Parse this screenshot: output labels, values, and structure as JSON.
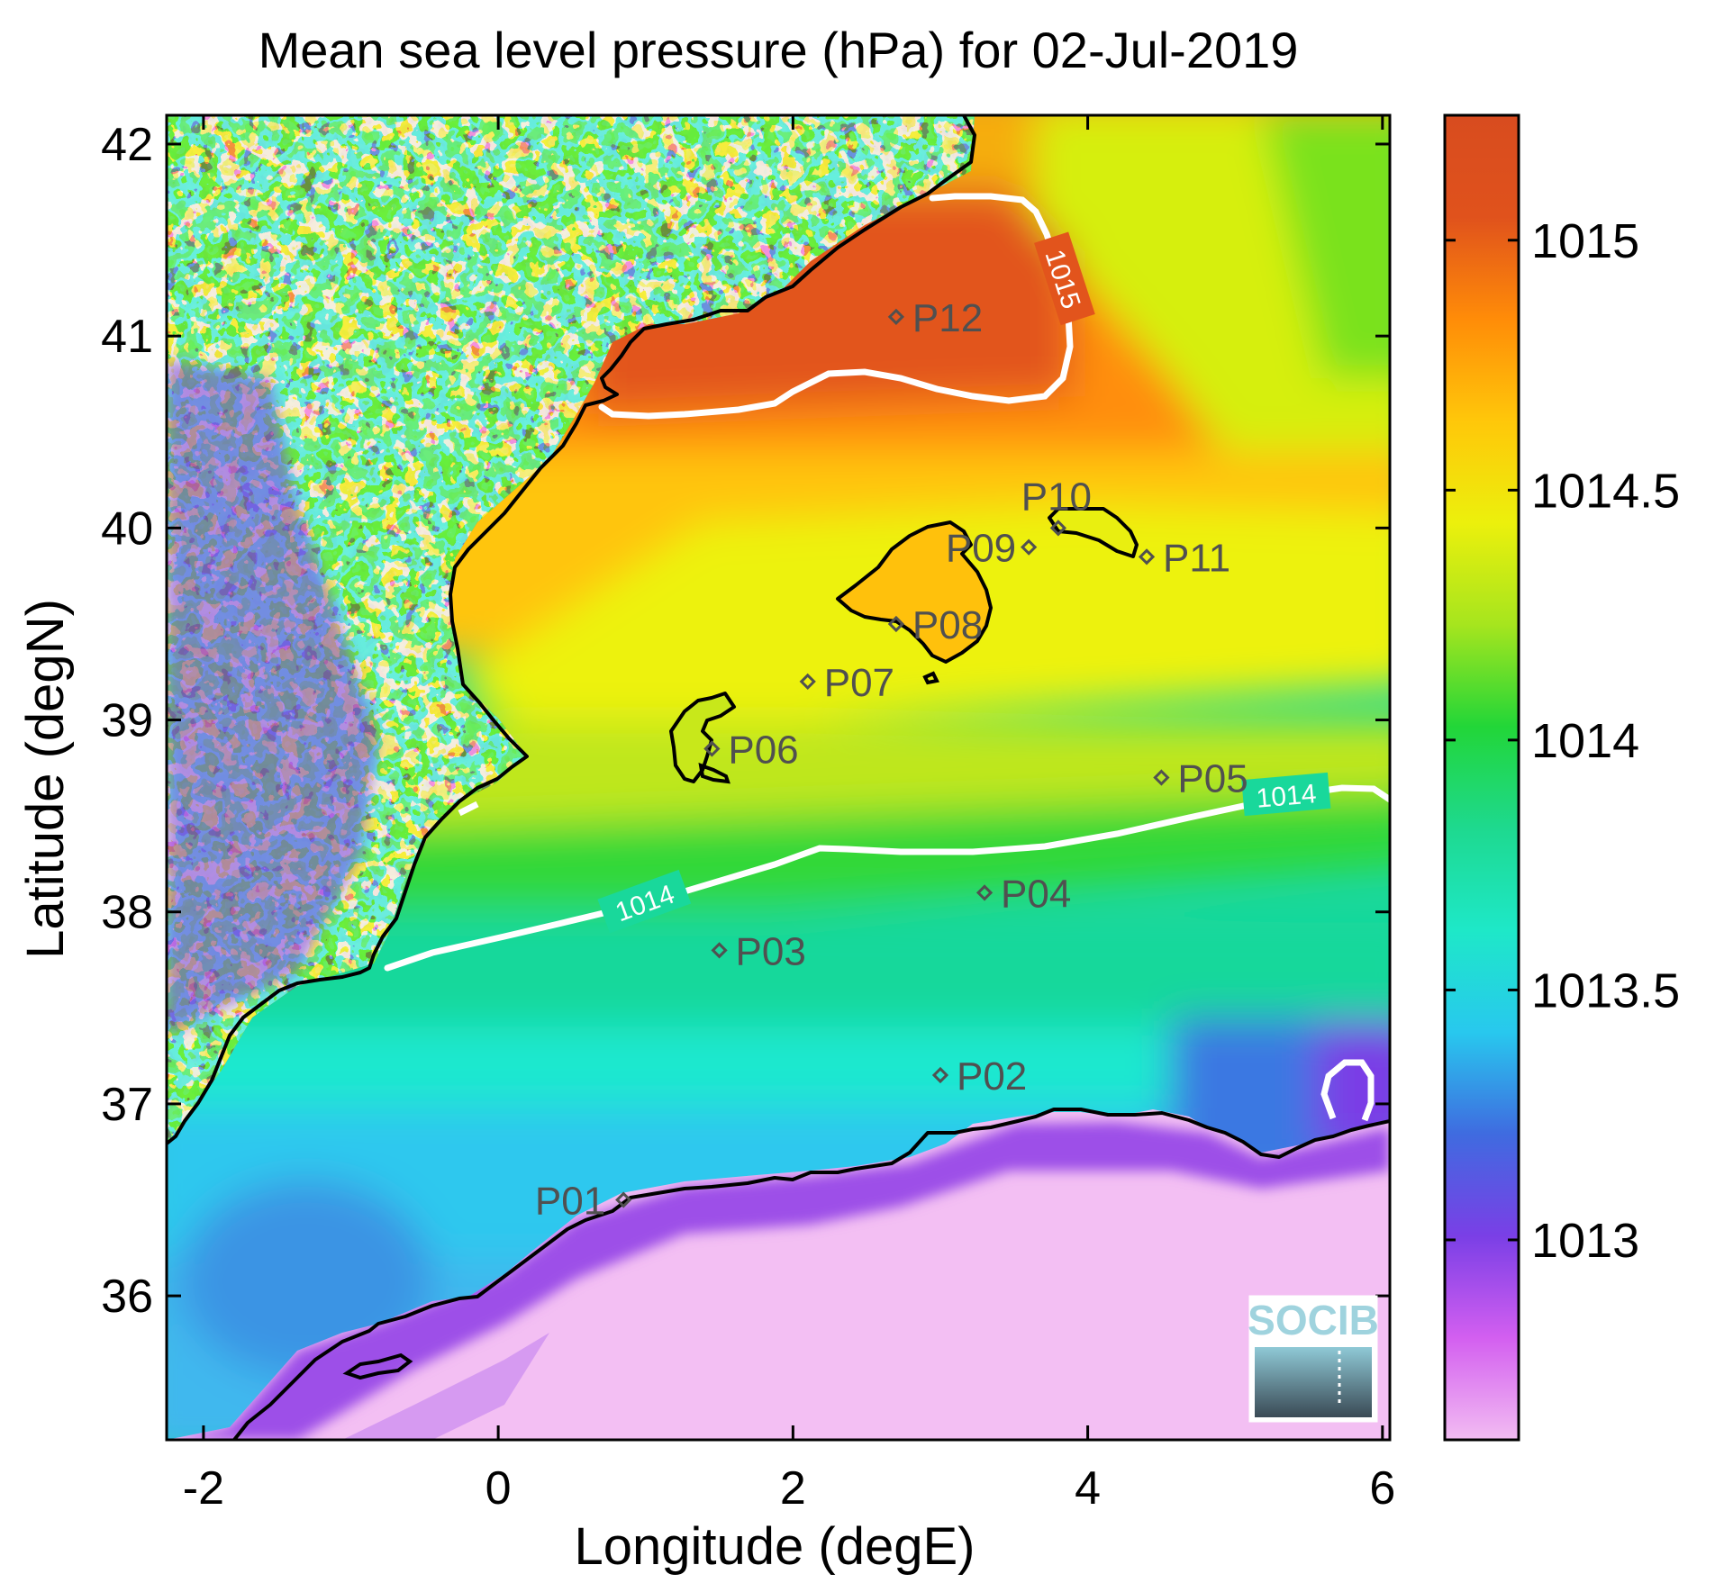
{
  "title": "Mean sea level pressure (hPa) for 02-Jul-2019",
  "x_axis": {
    "label": "Longitude (degE)",
    "ticks": [
      "-2",
      "0",
      "2",
      "4",
      "6"
    ]
  },
  "y_axis": {
    "label": "Latitude (degN)",
    "ticks": [
      "36",
      "37",
      "38",
      "39",
      "40",
      "41",
      "42"
    ]
  },
  "colorbar": {
    "ticks": [
      "1013",
      "1013.5",
      "1014",
      "1014.5",
      "1015"
    ],
    "range": [
      1012.6,
      1015.25
    ],
    "colormap": [
      "#f2bcf2",
      "#d35ff0",
      "#7a3fe6",
      "#3f6be0",
      "#28c8ee",
      "#1ee8c8",
      "#1ed98f",
      "#22d638",
      "#a6e51e",
      "#ecf00c",
      "#ffc70a",
      "#ff8c08",
      "#e0521c",
      "#d84c1f"
    ]
  },
  "contours": [
    {
      "level": 1014,
      "labels": [
        "1014",
        "1014"
      ]
    },
    {
      "level": 1015,
      "labels": [
        "1015"
      ]
    }
  ],
  "stations": [
    {
      "id": "P01",
      "lon": 0.85,
      "lat": 36.5
    },
    {
      "id": "P02",
      "lon": 3.0,
      "lat": 37.15
    },
    {
      "id": "P03",
      "lon": 1.5,
      "lat": 37.8
    },
    {
      "id": "P04",
      "lon": 3.3,
      "lat": 38.1
    },
    {
      "id": "P05",
      "lon": 4.5,
      "lat": 38.7
    },
    {
      "id": "P06",
      "lon": 1.45,
      "lat": 38.85
    },
    {
      "id": "P07",
      "lon": 2.1,
      "lat": 39.2
    },
    {
      "id": "P08",
      "lon": 2.7,
      "lat": 39.5
    },
    {
      "id": "P09",
      "lon": 3.6,
      "lat": 39.9
    },
    {
      "id": "P10",
      "lon": 3.8,
      "lat": 40.0
    },
    {
      "id": "P11",
      "lon": 4.4,
      "lat": 39.85
    },
    {
      "id": "P12",
      "lon": 2.7,
      "lat": 41.1
    }
  ],
  "chart_data": {
    "type": "heatmap",
    "title": "Mean sea level pressure (hPa) for 02-Jul-2019",
    "xlabel": "Longitude (degE)",
    "ylabel": "Latitude (degN)",
    "xlim": [
      -2.25,
      6.05
    ],
    "ylim": [
      35.25,
      42.15
    ],
    "clim": [
      1012.6,
      1015.25
    ],
    "units": "hPa",
    "contour_levels": [
      1014,
      1015
    ],
    "station_ids": [
      "P01",
      "P02",
      "P03",
      "P04",
      "P05",
      "P06",
      "P07",
      "P08",
      "P09",
      "P10",
      "P11",
      "P12"
    ]
  },
  "logo": {
    "text": "SOCIB"
  }
}
